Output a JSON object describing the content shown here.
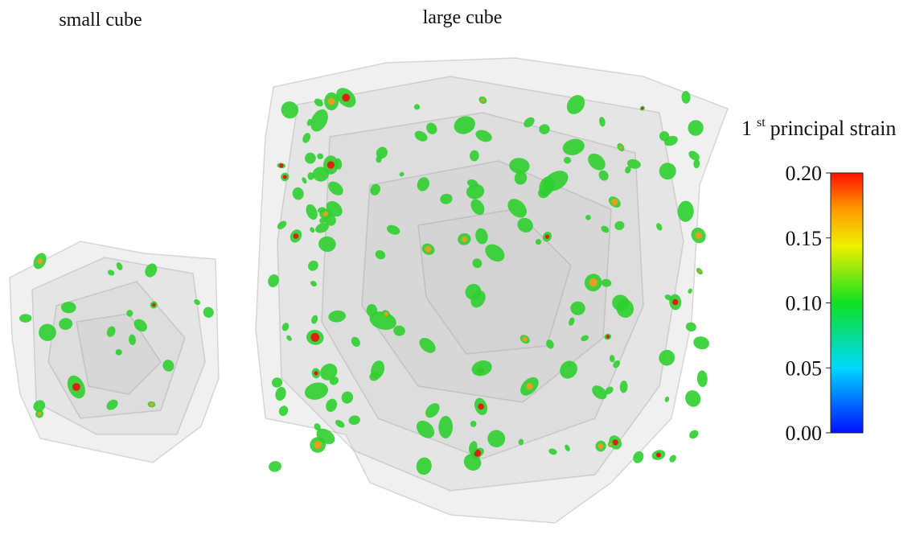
{
  "panels": [
    {
      "label": "small cube"
    },
    {
      "label": "large cube"
    }
  ],
  "colorbar": {
    "title_prefix": "1",
    "title_sup": "st",
    "title_rest": "principal strain",
    "range": [
      0,
      0.2
    ],
    "ticks": [
      {
        "value": 0,
        "label": "0.00"
      },
      {
        "value": 0.05,
        "label": "0.05"
      },
      {
        "value": 0.1,
        "label": "0.10"
      },
      {
        "value": 0.15,
        "label": "0.15"
      },
      {
        "value": 0.2,
        "label": "0.20"
      }
    ]
  }
}
